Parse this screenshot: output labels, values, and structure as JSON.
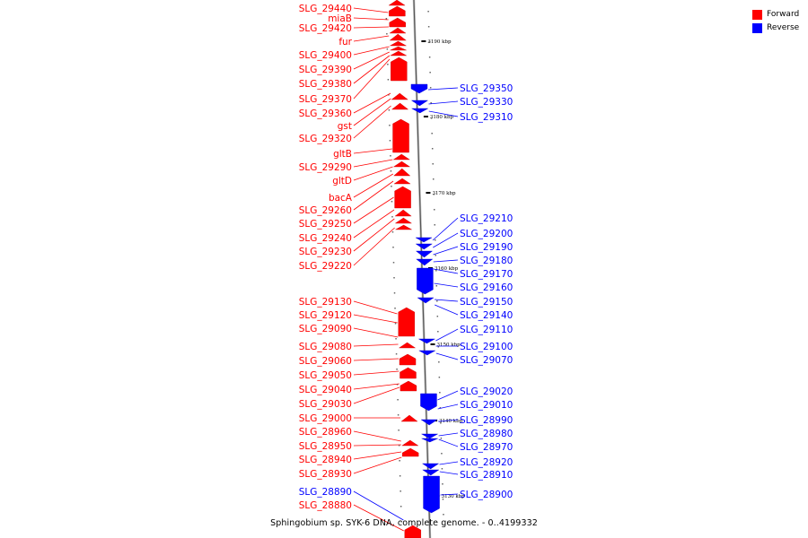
{
  "legend": {
    "forward_label": "Forward",
    "reverse_label": "Reverse",
    "forward_color": "#ff0000",
    "reverse_color": "#0000ff"
  },
  "caption": "Sphingobium sp. SYK-6 DNA, complete genome. - 0..4199332",
  "ticks": [
    "3190 kbp",
    "3180 kbp",
    "3170 kbp",
    "3160 kbp",
    "3150 kbp",
    "3140 kbp",
    "3130 kbp"
  ],
  "forward_labels": [
    "SLG_29440",
    "miaB",
    "SLG_29420",
    "fur",
    "SLG_29400",
    "SLG_29390",
    "SLG_29380",
    "SLG_29370",
    "SLG_29360",
    "gst",
    "SLG_29320",
    "gltB",
    "SLG_29290",
    "gltD",
    "bacA",
    "SLG_29260",
    "SLG_29250",
    "SLG_29240",
    "SLG_29230",
    "SLG_29220",
    "SLG_29130",
    "SLG_29120",
    "SLG_29090",
    "SLG_29080",
    "SLG_29060",
    "SLG_29050",
    "SLG_29040",
    "SLG_29030",
    "SLG_29000",
    "SLG_28960",
    "SLG_28950",
    "SLG_28940",
    "SLG_28930",
    "SLG_28880"
  ],
  "reverse_labels": [
    "SLG_29350",
    "SLG_29330",
    "SLG_29310",
    "SLG_29210",
    "SLG_29200",
    "SLG_29190",
    "SLG_29180",
    "SLG_29170",
    "SLG_29160",
    "SLG_29150",
    "SLG_29140",
    "SLG_29110",
    "SLG_29100",
    "SLG_29070",
    "SLG_29020",
    "SLG_29010",
    "SLG_28990",
    "SLG_28980",
    "SLG_28970",
    "SLG_28920",
    "SLG_28910",
    "SLG_28900",
    "SLG_28890"
  ]
}
